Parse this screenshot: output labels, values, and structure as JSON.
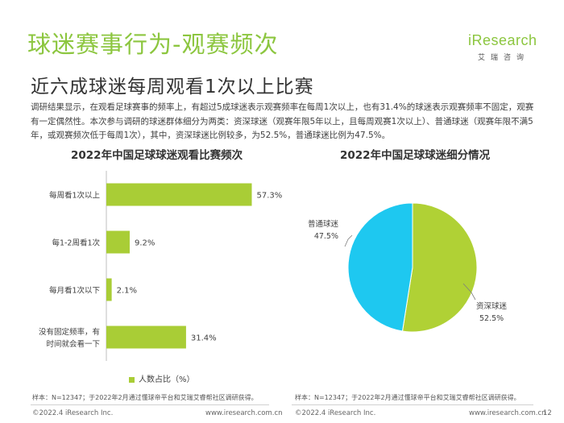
{
  "header": {
    "title": "球迷赛事行为-观赛频次",
    "subtitle": "近六成球迷每周观看1次以上比赛"
  },
  "logo": {
    "brand": "iResearch",
    "sub": "艾瑞咨询"
  },
  "intro": {
    "text": "调研结果显示，在观看足球赛事的频率上，有超过5成球迷表示观赛频率在每周1次以上，也有31.4%的球迷表示观赛频率不固定，观赛有一定偶然性。本次参与调研的球迷群体细分为两类：资深球迷（观赛年限5年以上，且每周观赛1次以上）、普通球迷（观赛年限不满5年，或观赛频次低于每周1次），其中，资深球迷比例较多，为52.5%，普通球迷比例为47.5%。"
  },
  "colors": {
    "title_green": "#8cc63f",
    "bar_green": "#a9cd36",
    "pie_green": "#b0d135",
    "pie_blue": "#1ec8f0"
  },
  "chart_data": [
    {
      "type": "bar",
      "orientation": "horizontal",
      "title": "2022年中国足球球迷观看比赛频次",
      "categories": [
        "每周看1次以上",
        "每1-2周看1次",
        "每月看1次以下",
        "没有固定频率，有时间就会看一下"
      ],
      "category_lines": [
        [
          "每周看1次以上"
        ],
        [
          "每1-2周看1次"
        ],
        [
          "每月看1次以下"
        ],
        [
          "没有固定频率，有",
          "时间就会看一下"
        ]
      ],
      "series": [
        {
          "name": "人数占比（%）",
          "values": [
            57.3,
            9.2,
            2.1,
            31.4
          ]
        }
      ],
      "value_labels": [
        "57.3%",
        "9.2%",
        "2.1%",
        "31.4%"
      ],
      "xlim": [
        0,
        60
      ],
      "legend": "bottom",
      "grid": false
    },
    {
      "type": "pie",
      "title": "2022年中国足球球迷细分情况",
      "slices": [
        {
          "label": "资深球迷",
          "value": 52.5,
          "value_label": "52.5%"
        },
        {
          "label": "普通球迷",
          "value": 47.5,
          "value_label": "47.5%"
        }
      ]
    }
  ],
  "sources": {
    "left": "样本：N=12347；于2022年2月通过懂球帝平台和艾瑞艾睿帮社区调研获得。",
    "right": "样本：N=12347；于2022年2月通过懂球帝平台和艾瑞艾睿帮社区调研获得。"
  },
  "footer": {
    "copyright": "©2022.4 iResearch Inc.",
    "url": "www.iresearch.com.cn",
    "page": "12"
  }
}
